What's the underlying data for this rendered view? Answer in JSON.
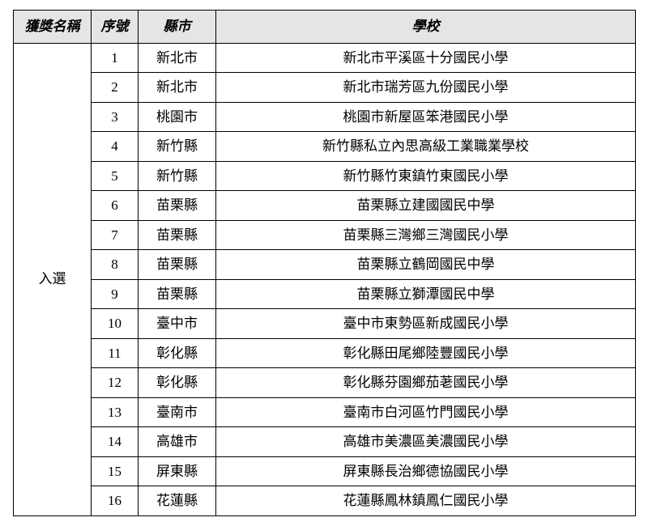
{
  "table": {
    "headers": {
      "award": "獲獎名稱",
      "seq": "序號",
      "county": "縣市",
      "school": "學校"
    },
    "award_label": "入選",
    "rows": [
      {
        "seq": "1",
        "county": "新北市",
        "school": "新北市平溪區十分國民小學"
      },
      {
        "seq": "2",
        "county": "新北市",
        "school": "新北市瑞芳區九份國民小學"
      },
      {
        "seq": "3",
        "county": "桃園市",
        "school": "桃園市新屋區笨港國民小學"
      },
      {
        "seq": "4",
        "county": "新竹縣",
        "school": "新竹縣私立內思高級工業職業學校"
      },
      {
        "seq": "5",
        "county": "新竹縣",
        "school": "新竹縣竹東鎮竹東國民小學"
      },
      {
        "seq": "6",
        "county": "苗栗縣",
        "school": "苗栗縣立建國國民中學"
      },
      {
        "seq": "7",
        "county": "苗栗縣",
        "school": "苗栗縣三灣鄉三灣國民小學"
      },
      {
        "seq": "8",
        "county": "苗栗縣",
        "school": "苗栗縣立鶴岡國民中學"
      },
      {
        "seq": "9",
        "county": "苗栗縣",
        "school": "苗栗縣立獅潭國民中學"
      },
      {
        "seq": "10",
        "county": "臺中市",
        "school": "臺中市東勢區新成國民小學"
      },
      {
        "seq": "11",
        "county": "彰化縣",
        "school": "彰化縣田尾鄉陸豐國民小學"
      },
      {
        "seq": "12",
        "county": "彰化縣",
        "school": "彰化縣芬園鄉茄荖國民小學"
      },
      {
        "seq": "13",
        "county": "臺南市",
        "school": "臺南市白河區竹門國民小學"
      },
      {
        "seq": "14",
        "county": "高雄市",
        "school": "高雄市美濃區美濃國民小學"
      },
      {
        "seq": "15",
        "county": "屏東縣",
        "school": "屏東縣長治鄉德協國民小學"
      },
      {
        "seq": "16",
        "county": "花蓮縣",
        "school": "花蓮縣鳳林鎮鳳仁國民小學"
      }
    ],
    "colors": {
      "header_bg": "#e5e5e5",
      "border": "#000000",
      "text": "#000000",
      "bg": "#ffffff"
    }
  }
}
